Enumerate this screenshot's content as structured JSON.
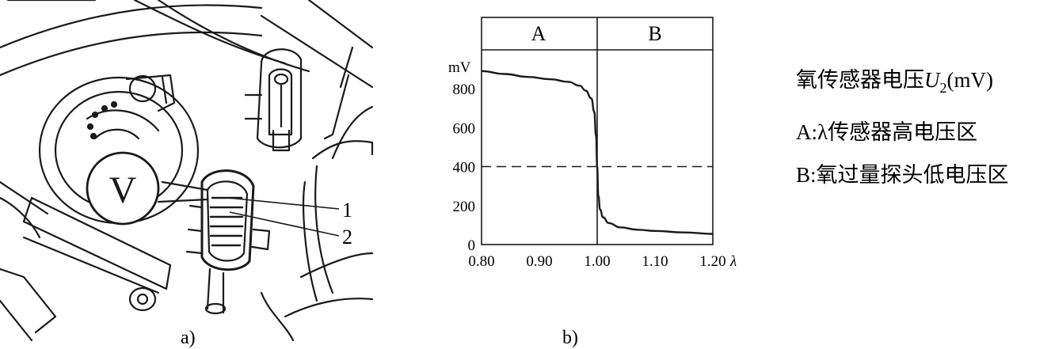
{
  "panel_a": {
    "meter_label": "V",
    "callouts": [
      "1",
      "2"
    ],
    "caption": "a)"
  },
  "panel_b": {
    "caption": "b)",
    "region_a": "A",
    "region_b": "B",
    "y_unit": "mV",
    "x_symbol": "λ",
    "y_ticks": [
      "800",
      "600",
      "400",
      "200",
      "0"
    ],
    "x_ticks": [
      "0.80",
      "0.90",
      "1.00",
      "1.10",
      "1.20"
    ],
    "reference_level_mv": 400
  },
  "legend": {
    "title_prefix": "氧传感器电压",
    "title_var": "U",
    "title_sub": "2",
    "title_suffix": "(mV)",
    "line_a": "A:λ传感器高电压区",
    "line_b": "B:氧过量探头低电压区"
  },
  "chart_data": {
    "type": "line",
    "x_range": [
      0.8,
      1.2
    ],
    "y_range": [
      0,
      900
    ],
    "reference_line_y": 400,
    "divider_x": 1.0,
    "series": [
      {
        "x": [
          0.8,
          0.84,
          0.88,
          0.92,
          0.95,
          0.97,
          0.98,
          0.99,
          0.995,
          0.998,
          1.0,
          1.002,
          1.005,
          1.01,
          1.02,
          1.04,
          1.07,
          1.1,
          1.15,
          1.2
        ],
        "y": [
          890,
          875,
          860,
          848,
          835,
          815,
          790,
          750,
          680,
          560,
          400,
          250,
          180,
          140,
          110,
          88,
          76,
          70,
          62,
          55
        ]
      }
    ]
  }
}
